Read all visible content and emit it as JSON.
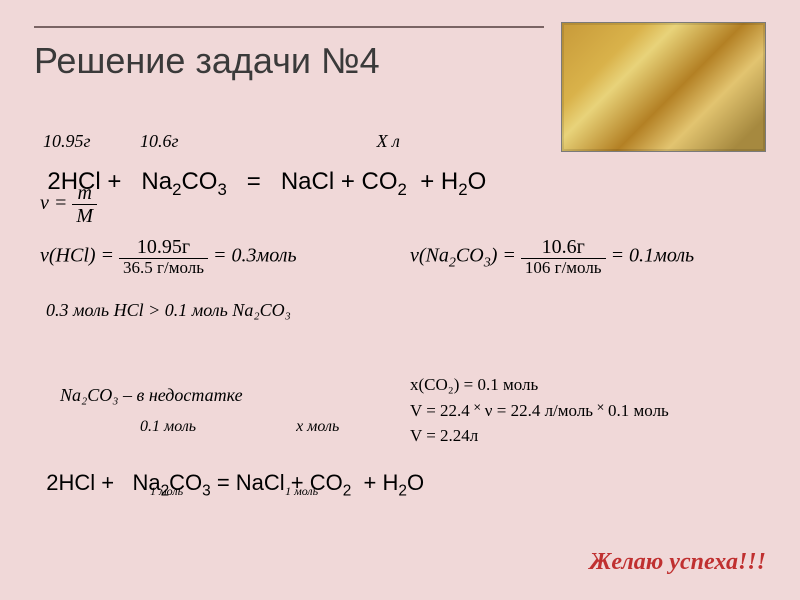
{
  "colors": {
    "background": "#f0d8d8",
    "rule": "#7a6464",
    "footer": "#c03030",
    "text": "#000000"
  },
  "title": "Решение задачи №4",
  "given": {
    "m1": "10.95г",
    "m2": "10.6г",
    "x": "Х л"
  },
  "eq1": {
    "lhs_coef": "2",
    "species1": "HCl",
    "plus1": " + ",
    "species2": "Na",
    "species2_sub1": "2",
    "species2b": "CO",
    "species2_sub2": "3",
    "eq": "   =   ",
    "species3": "NaCl + CO",
    "species3_sub": "2",
    "plus3": "  + H",
    "species4_sub": "2",
    "species4b": "O"
  },
  "nu_formula": {
    "nu": "ν",
    "eq": " = ",
    "num": "m",
    "den": "M"
  },
  "nu_hcl": {
    "prefix": "ν(HCl) = ",
    "num": "10.95г",
    "den": "36.5  г/моль",
    "result": " = 0.3моль"
  },
  "nu_na2co3": {
    "prefix": "ν(Na",
    "sub1": "2",
    "mid": "CO",
    "sub2": "3",
    "close": ") = ",
    "num": "10.6г",
    "den": "106  г/моль",
    "result": " = 0.1моль"
  },
  "compare": "0.3 моль HCl  >  0.1 моль Na₂CO₃",
  "deficit": "Na₂CO₃ – в недостатке",
  "row2": {
    "top_left": "0.1 моль",
    "top_right": "х моль",
    "bot_left": "1 моль",
    "bot_right": "1 моль"
  },
  "calc": {
    "line1": "х(CO₂) = 0.1  моль",
    "line2": "V = 22.4 ˟ ν = 22.4 л/моль ˟  0.1 моль",
    "line3": "V = 2.24л"
  },
  "footer": "Желаю успеха!!!"
}
